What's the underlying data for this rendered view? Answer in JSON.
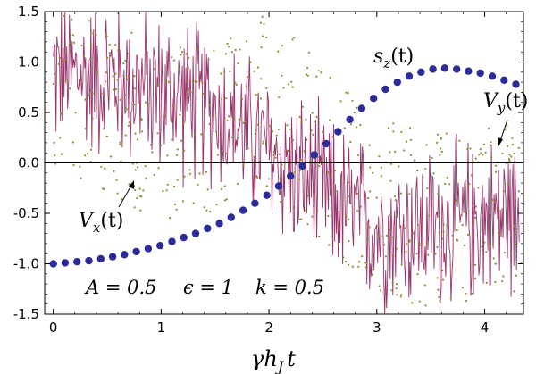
{
  "chart_data": {
    "type": "line",
    "title": "",
    "xlabel": "γh_J t",
    "ylabel": "",
    "xlim": [
      -0.08,
      4.36
    ],
    "ylim": [
      -1.5,
      1.5
    ],
    "x_ticks": [
      "0",
      "1",
      "2",
      "3",
      "4"
    ],
    "x_tick_values": [
      0,
      1,
      2,
      3,
      4
    ],
    "y_ticks": [
      "-1.5",
      "-1.0",
      "-0.5",
      "0.0",
      "0.5",
      "1.0",
      "1.5"
    ],
    "y_tick_values": [
      -1.5,
      -1.0,
      -0.5,
      0.0,
      0.5,
      1.0,
      1.5
    ],
    "zero_line": true,
    "colors": {
      "s_z": "#2b2b99",
      "V_x": "#99336b",
      "V_y": "#8f8a2e",
      "axis": "#000000"
    },
    "series": [
      {
        "name": "s_z(t)",
        "style": "dots",
        "x": [
          0.0,
          0.11,
          0.22,
          0.33,
          0.44,
          0.55,
          0.66,
          0.77,
          0.88,
          0.99,
          1.1,
          1.21,
          1.32,
          1.43,
          1.54,
          1.65,
          1.76,
          1.87,
          1.98,
          2.09,
          2.2,
          2.31,
          2.42,
          2.53,
          2.64,
          2.75,
          2.86,
          2.97,
          3.08,
          3.19,
          3.3,
          3.41,
          3.52,
          3.63,
          3.74,
          3.85,
          3.96,
          4.07,
          4.18,
          4.29
        ],
        "values": [
          -1.0,
          -0.99,
          -0.98,
          -0.97,
          -0.95,
          -0.93,
          -0.91,
          -0.88,
          -0.85,
          -0.82,
          -0.78,
          -0.74,
          -0.7,
          -0.65,
          -0.6,
          -0.54,
          -0.47,
          -0.4,
          -0.32,
          -0.23,
          -0.13,
          -0.03,
          0.08,
          0.19,
          0.31,
          0.43,
          0.54,
          0.64,
          0.73,
          0.8,
          0.86,
          0.9,
          0.93,
          0.94,
          0.93,
          0.91,
          0.89,
          0.86,
          0.82,
          0.78
        ]
      },
      {
        "name": "V_x(t)",
        "style": "oscillating-line",
        "envelope_center": [
          [
            0,
            0.9
          ],
          [
            0.5,
            0.85
          ],
          [
            1.0,
            0.7
          ],
          [
            1.5,
            0.55
          ],
          [
            2.0,
            0.1
          ],
          [
            2.5,
            -0.3
          ],
          [
            3.0,
            -0.65
          ],
          [
            3.5,
            -0.65
          ],
          [
            4.0,
            -0.55
          ],
          [
            4.3,
            -0.5
          ]
        ],
        "amplitude": 0.75
      },
      {
        "name": "V_y(t)",
        "style": "scattered-dots",
        "envelope_center": [
          [
            0,
            0.85
          ],
          [
            0.5,
            0.6
          ],
          [
            1.0,
            0.2
          ],
          [
            1.5,
            0.4
          ],
          [
            2.0,
            0.6
          ],
          [
            2.5,
            0.1
          ],
          [
            3.0,
            -0.4
          ],
          [
            3.5,
            -0.6
          ],
          [
            4.0,
            -0.45
          ],
          [
            4.3,
            -0.4
          ]
        ],
        "amplitude": 0.8
      }
    ],
    "annotations": {
      "sz_label": "s",
      "sz_sub": "z",
      "vx_label": "V",
      "vx_sub": "x",
      "vy_label": "V",
      "vy_sub": "y",
      "t_arg": "(t)",
      "params_A": "A = 0.5",
      "params_eps": "ϵ = 1",
      "params_k": "k = 0.5",
      "xlabel_gamma": "γh",
      "xlabel_sub": "J",
      "xlabel_t": "t"
    }
  }
}
